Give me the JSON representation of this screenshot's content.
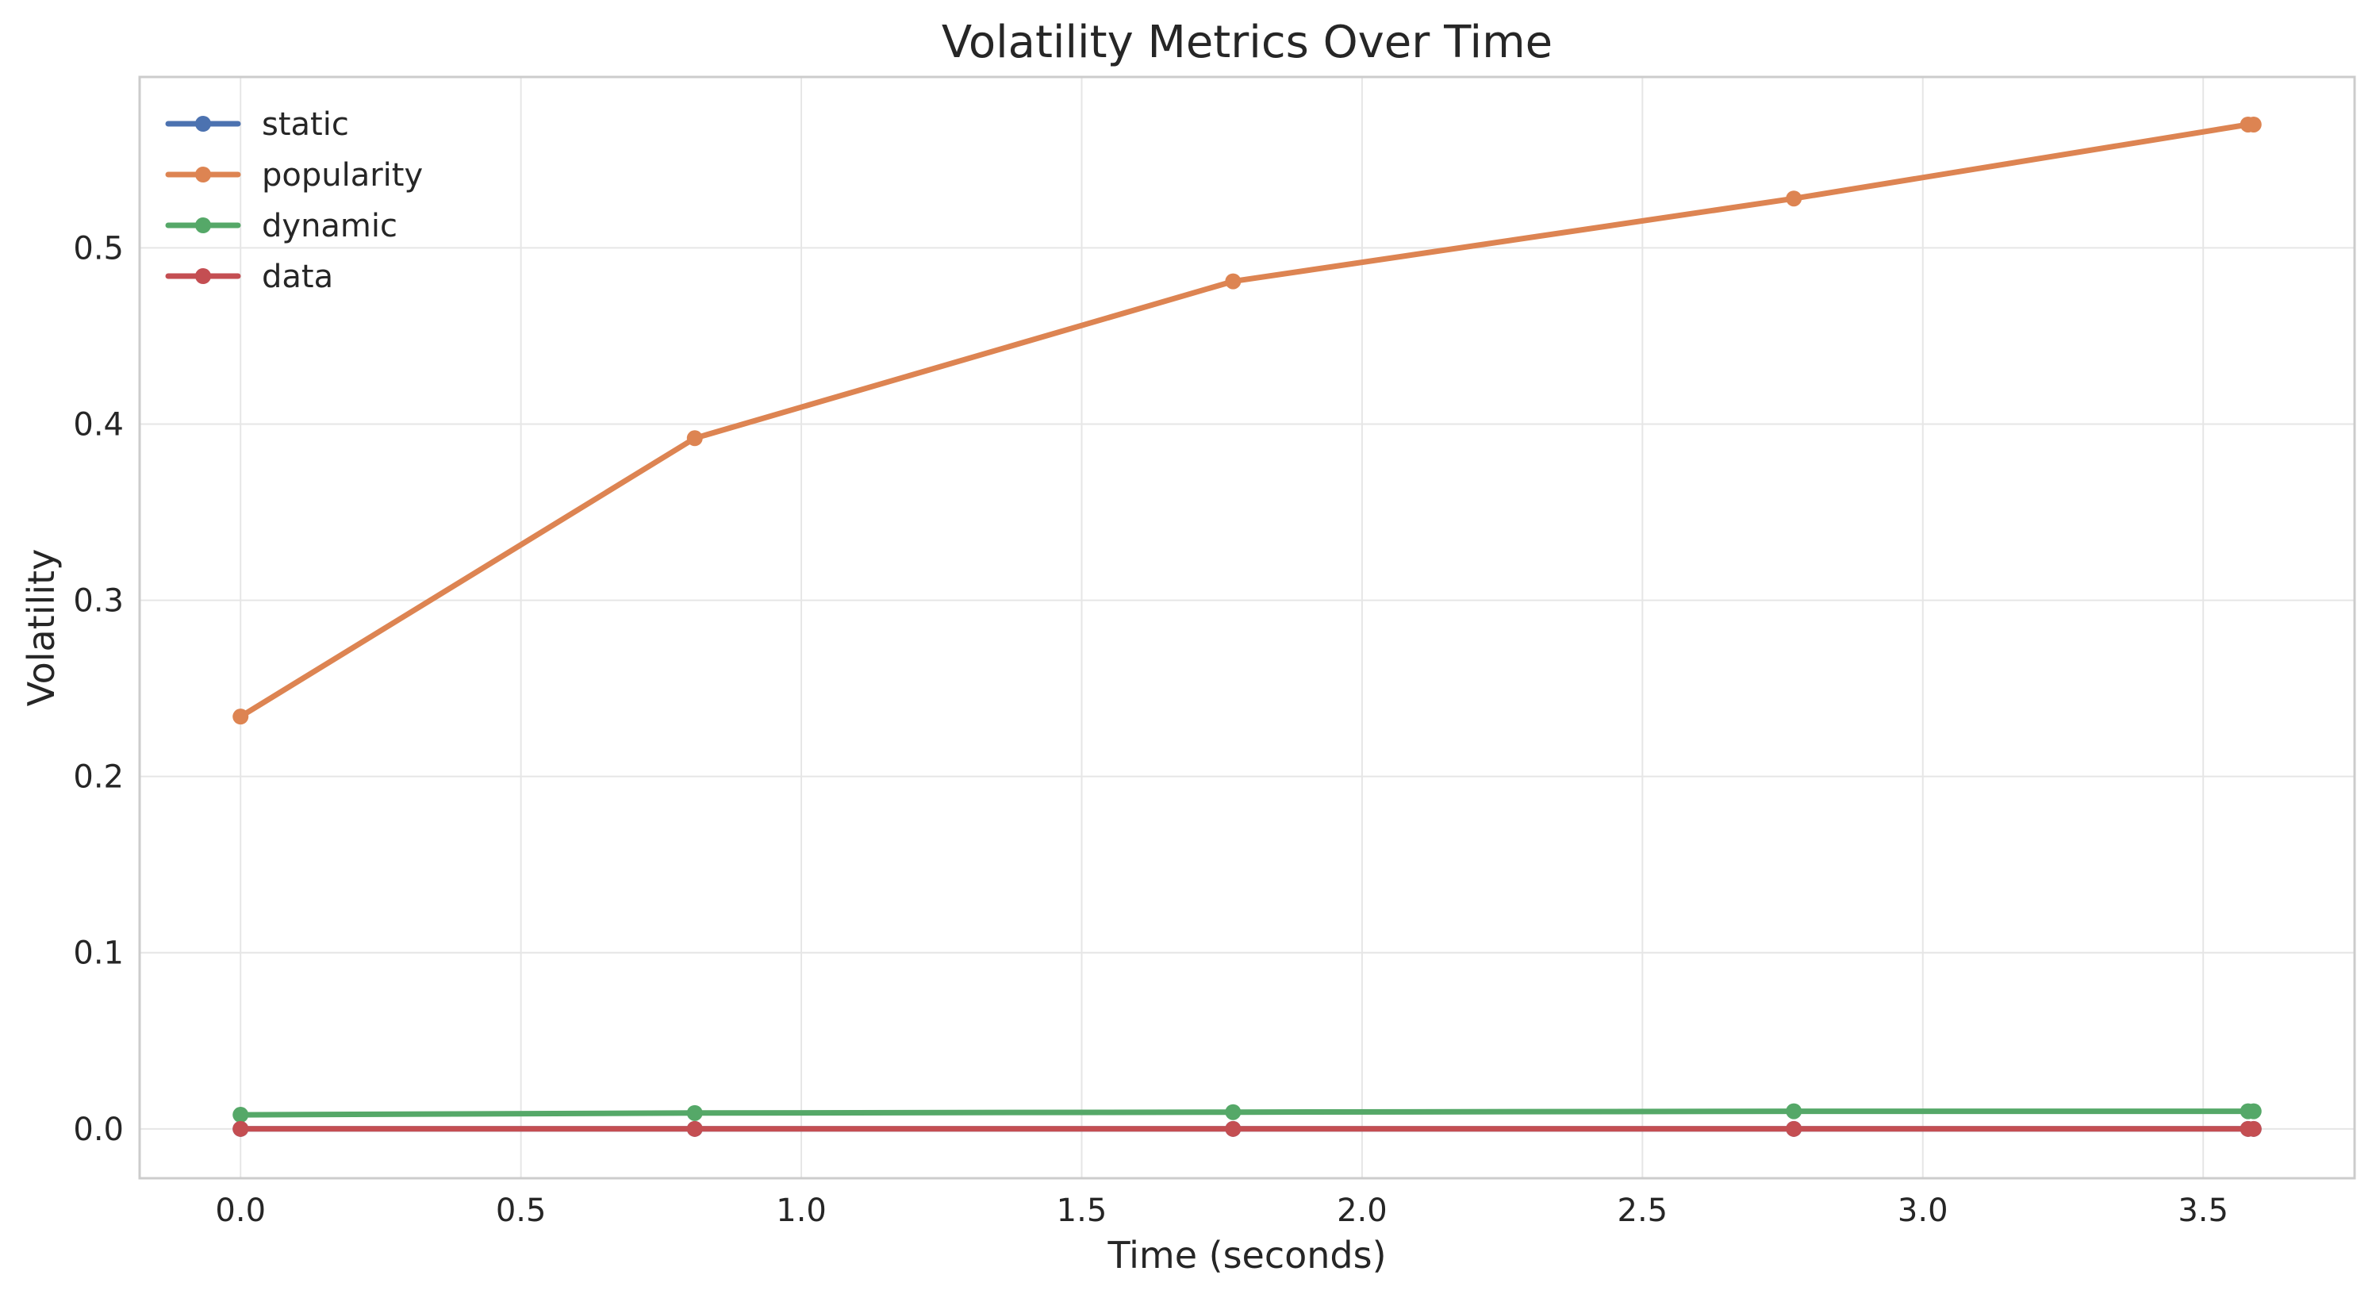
{
  "chart_data": {
    "type": "line",
    "title": "Volatility Metrics Over Time",
    "xlabel": "Time (seconds)",
    "ylabel": "Volatility",
    "xlim": [
      -0.18,
      3.77
    ],
    "ylim": [
      -0.028,
      0.597
    ],
    "xticks": [
      0.0,
      0.5,
      1.0,
      1.5,
      2.0,
      2.5,
      3.0,
      3.5
    ],
    "xtick_labels": [
      "0.0",
      "0.5",
      "1.0",
      "1.5",
      "2.0",
      "2.5",
      "3.0",
      "3.5"
    ],
    "yticks": [
      0.0,
      0.1,
      0.2,
      0.3,
      0.4,
      0.5
    ],
    "ytick_labels": [
      "0.0",
      "0.1",
      "0.2",
      "0.3",
      "0.4",
      "0.5"
    ],
    "grid": true,
    "legend_position": "top-left",
    "series": [
      {
        "name": "static",
        "color": "#4c72b0",
        "x": [
          0.0,
          0.81,
          1.77,
          2.77,
          3.58,
          3.59
        ],
        "y": [
          0.0,
          0.0,
          0.0,
          0.0,
          0.0,
          0.0
        ]
      },
      {
        "name": "popularity",
        "color": "#dd8452",
        "x": [
          0.0,
          0.81,
          1.77,
          2.77,
          3.58,
          3.59
        ],
        "y": [
          0.234,
          0.392,
          0.481,
          0.528,
          0.57,
          0.57
        ]
      },
      {
        "name": "dynamic",
        "color": "#55a868",
        "x": [
          0.0,
          0.81,
          1.77,
          2.77,
          3.58,
          3.59
        ],
        "y": [
          0.008,
          0.009,
          0.0095,
          0.01,
          0.01,
          0.01
        ]
      },
      {
        "name": "data",
        "color": "#c44e52",
        "x": [
          0.0,
          0.81,
          1.77,
          2.77,
          3.58,
          3.59
        ],
        "y": [
          0.0,
          0.0,
          0.0,
          0.0,
          0.0,
          0.0
        ]
      }
    ]
  }
}
